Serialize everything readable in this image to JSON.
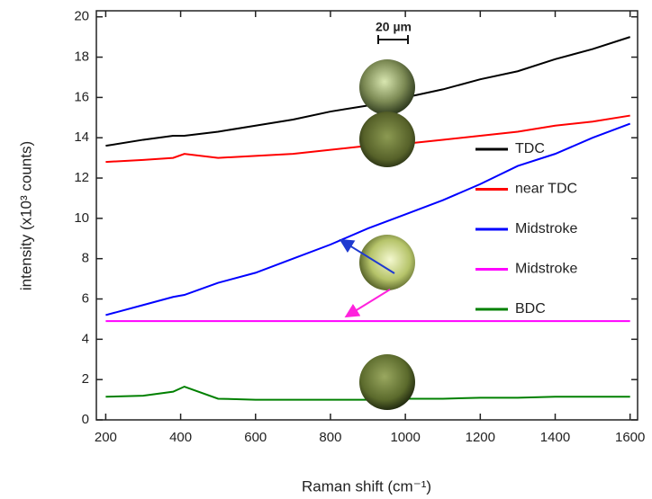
{
  "chart_data": {
    "type": "line",
    "x_label": "Raman shift (cm⁻¹)",
    "y_label": "intensity (x10³ counts)",
    "annotation": "20 µm",
    "x": [
      200,
      300,
      380,
      410,
      500,
      600,
      700,
      800,
      900,
      1000,
      1100,
      1200,
      1300,
      1400,
      1500,
      1600
    ],
    "series": [
      {
        "name": "TDC",
        "color": "#000000",
        "values": [
          13.6,
          13.9,
          14.1,
          14.1,
          14.3,
          14.6,
          14.9,
          15.3,
          15.6,
          16.0,
          16.4,
          16.9,
          17.3,
          17.9,
          18.4,
          19.0
        ]
      },
      {
        "name": "near TDC",
        "color": "#ff0000",
        "values": [
          12.8,
          12.9,
          13.0,
          13.2,
          13.0,
          13.1,
          13.2,
          13.4,
          13.6,
          13.7,
          13.9,
          14.1,
          14.3,
          14.6,
          14.8,
          15.1
        ]
      },
      {
        "name": "Midstroke",
        "color": "#0000ff",
        "values": [
          5.2,
          5.7,
          6.1,
          6.2,
          6.8,
          7.3,
          8.0,
          8.7,
          9.5,
          10.2,
          10.9,
          11.7,
          12.6,
          13.2,
          14.0,
          14.7
        ]
      },
      {
        "name": "Midstroke",
        "color": "#ff00ff",
        "values": [
          4.9,
          4.9,
          4.9,
          4.9,
          4.9,
          4.9,
          4.9,
          4.9,
          4.9,
          4.9,
          4.9,
          4.9,
          4.9,
          4.9,
          4.9,
          4.9
        ]
      },
      {
        "name": "BDC",
        "color": "#008000",
        "values": [
          1.15,
          1.2,
          1.4,
          1.65,
          1.05,
          1.0,
          1.0,
          1.0,
          1.0,
          1.05,
          1.05,
          1.1,
          1.1,
          1.15,
          1.15,
          1.15
        ]
      }
    ],
    "xlim": [
      175,
      1620
    ],
    "xticks": [
      200,
      400,
      600,
      800,
      1000,
      1200,
      1400,
      1600
    ],
    "ylim": [
      0,
      20.3
    ],
    "yticks": [
      0,
      2,
      4,
      6,
      8,
      10,
      12,
      14,
      16,
      18,
      20
    ],
    "grid": false,
    "legend": "right"
  }
}
